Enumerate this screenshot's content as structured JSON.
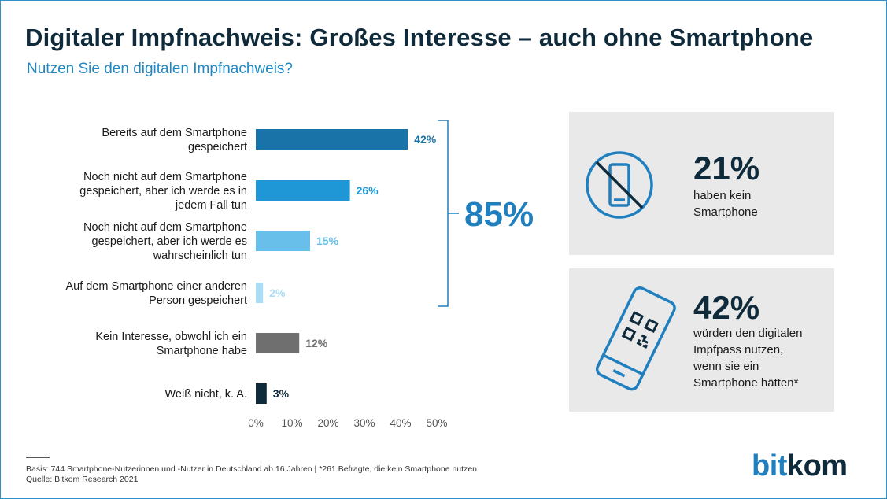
{
  "title": "Digitaler Impfnachweis: Großes Interesse – auch ohne Smartphone",
  "subtitle": "Nutzen Sie den digitalen Impfnachweis?",
  "chart_data": {
    "type": "bar",
    "orientation": "horizontal",
    "categories": [
      [
        "Bereits auf dem Smartphone",
        "gespeichert"
      ],
      [
        "Noch nicht auf dem Smartphone",
        "gespeichert, aber ich werde es in",
        "jedem Fall tun"
      ],
      [
        "Noch nicht auf dem Smartphone",
        "gespeichert,  aber ich werde es",
        "wahrscheinlich tun"
      ],
      [
        "Auf dem Smartphone einer anderen",
        "Person gespeichert"
      ],
      [
        "Kein Interesse, obwohl ich ein",
        "Smartphone habe"
      ],
      [
        "Weiß nicht, k. A."
      ]
    ],
    "values": [
      42,
      26,
      15,
      2,
      12,
      3
    ],
    "value_labels": [
      "42%",
      "26%",
      "15%",
      "2%",
      "12%",
      "3%"
    ],
    "bar_colors": [
      "#1a73a8",
      "#1f97d6",
      "#68bfea",
      "#a9dcf5",
      "#6f6f6f",
      "#0f2a3a"
    ],
    "label_colors": [
      "#1a73a8",
      "#1f97d6",
      "#68bfea",
      "#a9dcf5",
      "#6f6f6f",
      "#0f2a3a"
    ],
    "xlim": [
      0,
      50
    ],
    "xticks": [
      "0%",
      "10%",
      "20%",
      "30%",
      "40%",
      "50%"
    ],
    "bracket_total": "85%",
    "bracket_color": "#1f7fbf",
    "grid": false
  },
  "stats": [
    {
      "value": "21%",
      "text": [
        "haben kein",
        "Smartphone"
      ],
      "icon": "no-smartphone-icon"
    },
    {
      "value": "42%",
      "text": [
        "würden den digitalen",
        "Impfpass nutzen,",
        "wenn sie ein",
        "Smartphone hätten*"
      ],
      "icon": "smartphone-qr-code-icon"
    }
  ],
  "footnote": {
    "line1": "Basis: 744  Smartphone-Nutzerinnen und -Nutzer in Deutschland ab 16 Jahren | *261 Befragte, die kein Smartphone nutzen",
    "line2": "Quelle: Bitkom Research 2021"
  },
  "logo": {
    "part1": "bit",
    "part2": "kom"
  },
  "accent_color": "#1f7fbf"
}
